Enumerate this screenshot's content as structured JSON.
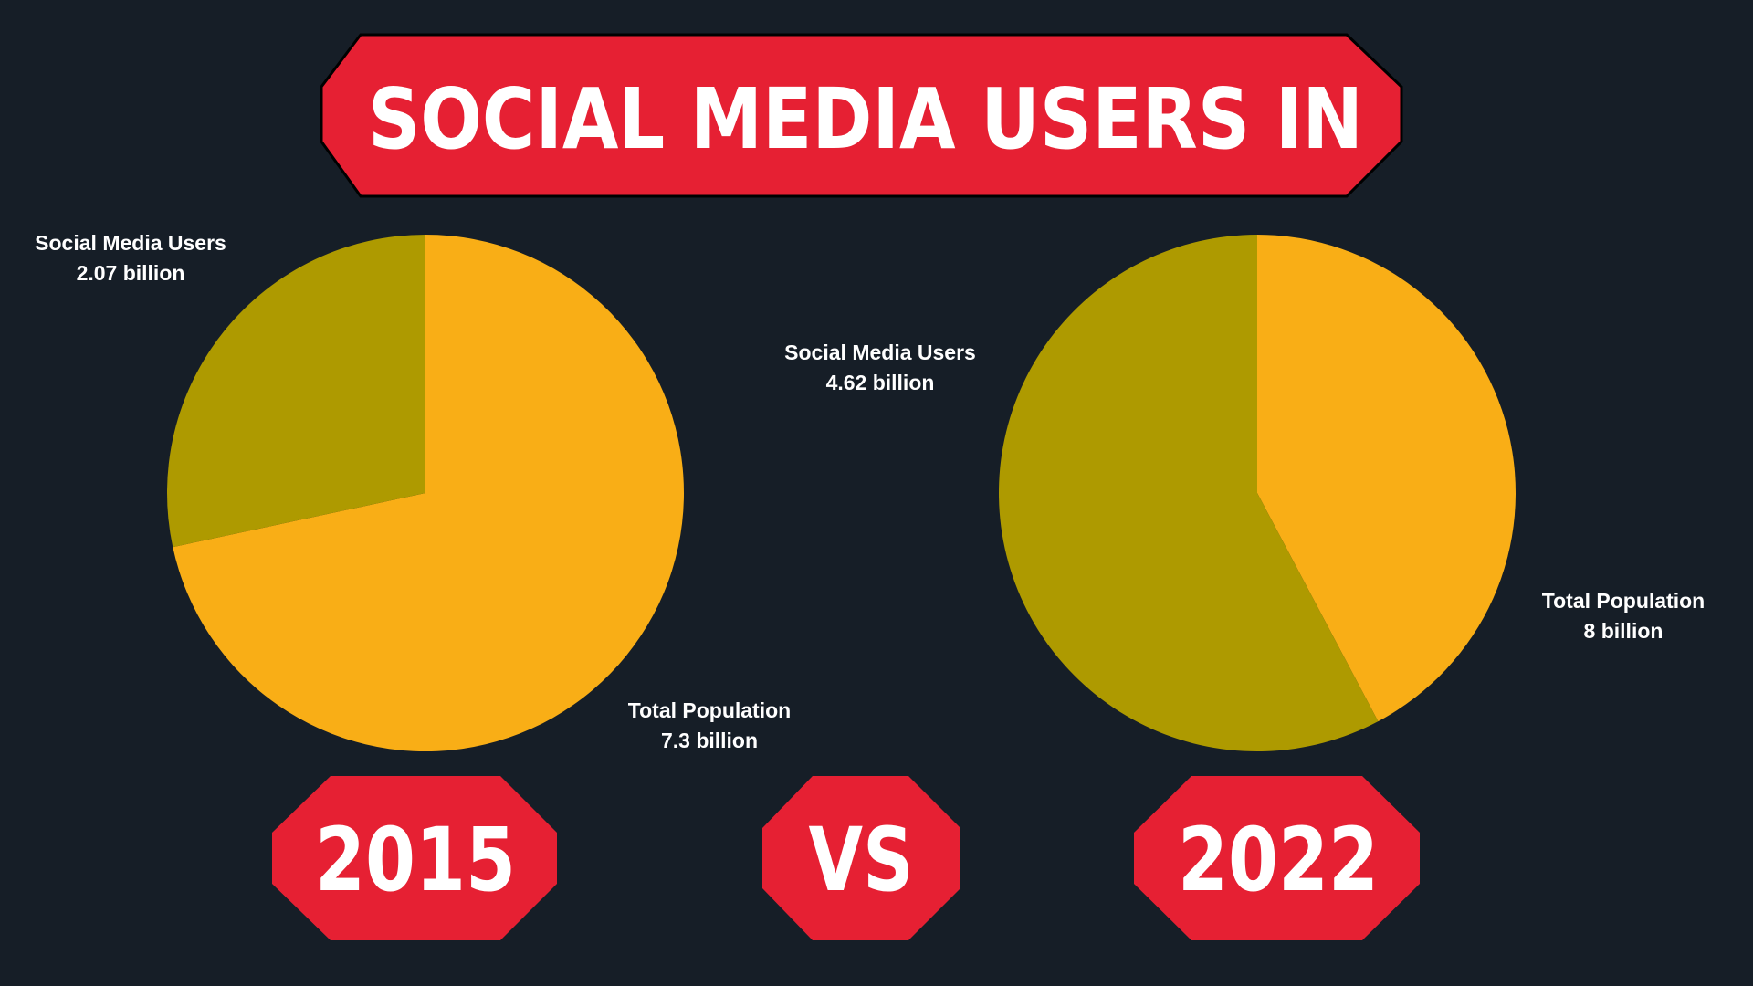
{
  "title": "SOCIAL MEDIA USERS IN",
  "vs_label": "VS",
  "colors": {
    "background": "#161e27",
    "banner": "#e62033",
    "banner_border": "#000000",
    "total_population": "#f9ae16",
    "social_media_users": "#ae9a00",
    "text": "#ffffff"
  },
  "chart_data": [
    {
      "type": "pie",
      "year": "2015",
      "slices": [
        {
          "label": "Total Population",
          "value_text": "7.3 billion",
          "value": 7.3
        },
        {
          "label": "Social Media Users",
          "value_text": "2.07 billion",
          "value": 2.07
        }
      ]
    },
    {
      "type": "pie",
      "year": "2022",
      "slices": [
        {
          "label": "Total Population",
          "value_text": "8 billion",
          "value": 8
        },
        {
          "label": "Social Media Users",
          "value_text": "4.62 billion",
          "value": 4.62
        }
      ]
    }
  ]
}
